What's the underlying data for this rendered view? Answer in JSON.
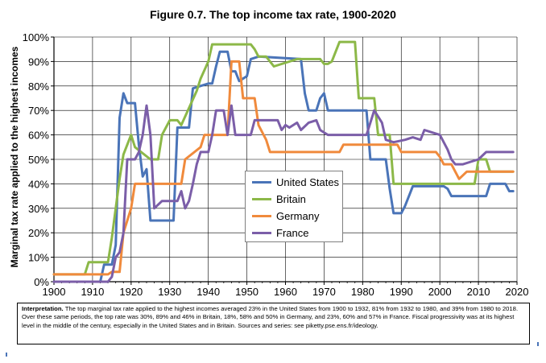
{
  "chart_data": {
    "type": "line",
    "title": "Figure 0.7. The top income tax rate, 1900-2020",
    "ylabel": "Marginal tax rate applied to the highest incomes",
    "xlabel": "",
    "xlim": [
      1900,
      2020
    ],
    "ylim": [
      0,
      100
    ],
    "x_ticks": [
      "1900",
      "1910",
      "1920",
      "1930",
      "1940",
      "1950",
      "1960",
      "1970",
      "1980",
      "1990",
      "2000",
      "2010",
      "2020"
    ],
    "y_ticks": [
      "0%",
      "10%",
      "20%",
      "30%",
      "40%",
      "50%",
      "60%",
      "70%",
      "80%",
      "90%",
      "100%"
    ],
    "grid": true,
    "legend": "center",
    "series": [
      {
        "name": "United States",
        "color": "#4a74b8",
        "points": [
          [
            1900,
            0
          ],
          [
            1912,
            0
          ],
          [
            1913,
            7
          ],
          [
            1915,
            7
          ],
          [
            1916,
            15
          ],
          [
            1917,
            67
          ],
          [
            1918,
            77
          ],
          [
            1919,
            73
          ],
          [
            1921,
            73
          ],
          [
            1922,
            56
          ],
          [
            1923,
            43
          ],
          [
            1924,
            46
          ],
          [
            1925,
            25
          ],
          [
            1931,
            25
          ],
          [
            1932,
            63
          ],
          [
            1935,
            63
          ],
          [
            1936,
            79
          ],
          [
            1940,
            81
          ],
          [
            1941,
            81
          ],
          [
            1942,
            88
          ],
          [
            1943,
            94
          ],
          [
            1944,
            94
          ],
          [
            1945,
            94
          ],
          [
            1946,
            86
          ],
          [
            1947,
            86
          ],
          [
            1948,
            82
          ],
          [
            1950,
            84
          ],
          [
            1951,
            91
          ],
          [
            1953,
            92
          ],
          [
            1964,
            91
          ],
          [
            1965,
            77
          ],
          [
            1966,
            70
          ],
          [
            1968,
            70
          ],
          [
            1969,
            75
          ],
          [
            1970,
            77
          ],
          [
            1971,
            70
          ],
          [
            1981,
            70
          ],
          [
            1982,
            50
          ],
          [
            1986,
            50
          ],
          [
            1987,
            38
          ],
          [
            1988,
            28
          ],
          [
            1990,
            28
          ],
          [
            1991,
            31
          ],
          [
            1993,
            39
          ],
          [
            2001,
            39
          ],
          [
            2002,
            38
          ],
          [
            2003,
            35
          ],
          [
            2012,
            35
          ],
          [
            2013,
            40
          ],
          [
            2017,
            40
          ],
          [
            2018,
            37
          ],
          [
            2019,
            37
          ]
        ]
      },
      {
        "name": "Britain",
        "color": "#8cb848",
        "points": [
          [
            1900,
            3
          ],
          [
            1908,
            3
          ],
          [
            1909,
            8
          ],
          [
            1914,
            8
          ],
          [
            1915,
            18
          ],
          [
            1917,
            42
          ],
          [
            1918,
            52
          ],
          [
            1920,
            60
          ],
          [
            1921,
            55
          ],
          [
            1925,
            50
          ],
          [
            1927,
            50
          ],
          [
            1928,
            60
          ],
          [
            1930,
            66
          ],
          [
            1932,
            66
          ],
          [
            1933,
            64
          ],
          [
            1937,
            78
          ],
          [
            1938,
            83
          ],
          [
            1940,
            90
          ],
          [
            1941,
            97
          ],
          [
            1951,
            97
          ],
          [
            1952,
            95
          ],
          [
            1953,
            92
          ],
          [
            1955,
            92
          ],
          [
            1956,
            90
          ],
          [
            1957,
            88
          ],
          [
            1963,
            91
          ],
          [
            1969,
            91
          ],
          [
            1970,
            89
          ],
          [
            1971,
            89
          ],
          [
            1972,
            90
          ],
          [
            1974,
            98
          ],
          [
            1978,
            98
          ],
          [
            1979,
            75
          ],
          [
            1983,
            75
          ],
          [
            1984,
            60
          ],
          [
            1987,
            60
          ],
          [
            1988,
            40
          ],
          [
            2009,
            40
          ],
          [
            2010,
            50
          ],
          [
            2012,
            50
          ],
          [
            2013,
            45
          ],
          [
            2019,
            45
          ]
        ]
      },
      {
        "name": "Germany",
        "color": "#f08a3c",
        "points": [
          [
            1900,
            3
          ],
          [
            1914,
            3
          ],
          [
            1915,
            4
          ],
          [
            1917,
            4
          ],
          [
            1918,
            20
          ],
          [
            1920,
            30
          ],
          [
            1921,
            40
          ],
          [
            1933,
            40
          ],
          [
            1934,
            50
          ],
          [
            1938,
            55
          ],
          [
            1939,
            60
          ],
          [
            1945,
            60
          ],
          [
            1946,
            90
          ],
          [
            1948,
            90
          ],
          [
            1949,
            75
          ],
          [
            1952,
            75
          ],
          [
            1953,
            64
          ],
          [
            1955,
            58
          ],
          [
            1956,
            53
          ],
          [
            1974,
            53
          ],
          [
            1975,
            56
          ],
          [
            1989,
            56
          ],
          [
            1990,
            53
          ],
          [
            1999,
            53
          ],
          [
            2000,
            51
          ],
          [
            2001,
            48
          ],
          [
            2003,
            48
          ],
          [
            2004,
            45
          ],
          [
            2005,
            42
          ],
          [
            2007,
            45
          ],
          [
            2019,
            45
          ]
        ]
      },
      {
        "name": "France",
        "color": "#7b5ea8",
        "points": [
          [
            1900,
            0
          ],
          [
            1914,
            0
          ],
          [
            1915,
            2
          ],
          [
            1916,
            10
          ],
          [
            1917,
            12
          ],
          [
            1918,
            20
          ],
          [
            1919,
            50
          ],
          [
            1921,
            50
          ],
          [
            1922,
            53
          ],
          [
            1923,
            60
          ],
          [
            1924,
            72
          ],
          [
            1925,
            60
          ],
          [
            1926,
            30
          ],
          [
            1928,
            33
          ],
          [
            1932,
            33
          ],
          [
            1933,
            37
          ],
          [
            1934,
            30
          ],
          [
            1935,
            33
          ],
          [
            1936,
            40
          ],
          [
            1937,
            48
          ],
          [
            1938,
            53
          ],
          [
            1940,
            53
          ],
          [
            1941,
            60
          ],
          [
            1942,
            70
          ],
          [
            1944,
            70
          ],
          [
            1945,
            60
          ],
          [
            1946,
            72
          ],
          [
            1947,
            60
          ],
          [
            1951,
            60
          ],
          [
            1952,
            66
          ],
          [
            1958,
            66
          ],
          [
            1959,
            62
          ],
          [
            1960,
            64
          ],
          [
            1961,
            63
          ],
          [
            1963,
            65
          ],
          [
            1964,
            62
          ],
          [
            1966,
            65
          ],
          [
            1968,
            66
          ],
          [
            1969,
            62
          ],
          [
            1970,
            61
          ],
          [
            1971,
            60
          ],
          [
            1981,
            60
          ],
          [
            1982,
            65
          ],
          [
            1983,
            70
          ],
          [
            1985,
            65
          ],
          [
            1986,
            58
          ],
          [
            1988,
            57
          ],
          [
            1991,
            58
          ],
          [
            1993,
            59
          ],
          [
            1995,
            58
          ],
          [
            1996,
            62
          ],
          [
            1998,
            61
          ],
          [
            2000,
            60
          ],
          [
            2001,
            57
          ],
          [
            2002,
            54
          ],
          [
            2003,
            50
          ],
          [
            2004,
            48
          ],
          [
            2006,
            48
          ],
          [
            2008,
            49
          ],
          [
            2010,
            50
          ],
          [
            2012,
            53
          ],
          [
            2019,
            53
          ]
        ]
      }
    ]
  },
  "note": {
    "label": "Interpretation.",
    "text": "The top marginal tax rate applied to the highest incomes averaged 23% in the United States from 1900 to 1932, 81% from 1932 to 1980, and 39% from 1980 to 2018. Over these same periods, the top rate was 30%, 89% and 46% in Britain, 18%, 58% and 50% in Germany, and 23%, 60% and 57% in France. Fiscal progressivity was at its highest level in the middle of the century, especially in the United States and in Britain. Sources and series: see piketty.pse.ens.fr/ideology."
  }
}
